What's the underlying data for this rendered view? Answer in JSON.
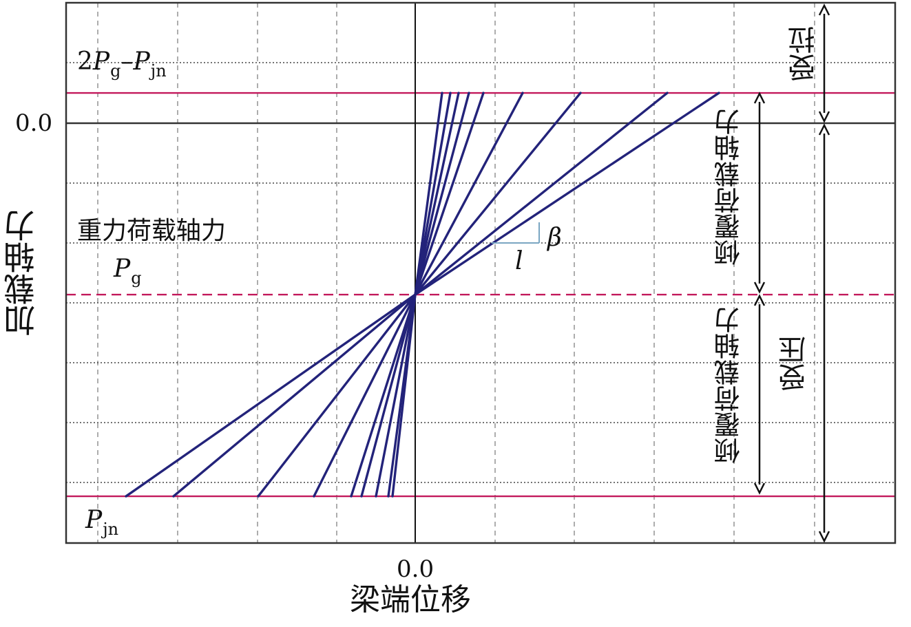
{
  "chart_data": {
    "type": "line",
    "title": "",
    "xlabel": "梁端位移",
    "ylabel": "加载轴力",
    "x_tick_labels": [
      "0.0"
    ],
    "y_tick_labels": [
      "0.0"
    ],
    "grid": true,
    "reference_lines": [
      {
        "label_prefix": "2",
        "label_p1": "P",
        "label_s1": "g",
        "label_dash": "–",
        "label_p2": "P",
        "label_s2": "jn",
        "value": 0.15,
        "color": "#c2185b",
        "style": "solid"
      },
      {
        "label_symbol": "P",
        "label_sub": "g",
        "value": -0.85,
        "color": "#c2185b",
        "style": "dashed"
      },
      {
        "label_symbol": "P",
        "label_sub": "jn",
        "value": -1.85,
        "color": "#c2185b",
        "style": "solid"
      }
    ],
    "gravity_load_label": "重力荷载轴力",
    "line_color": "#23237a",
    "upper_lines_x_at_top": [
      0.13,
      0.17,
      0.21,
      0.26,
      0.33,
      0.52,
      0.8,
      1.22,
      1.47
    ],
    "lower_lines_x_at_bottom": [
      -1.4,
      -1.17,
      -0.76,
      -0.49,
      -0.31,
      -0.26,
      -0.19,
      -0.13,
      -0.11
    ],
    "slope_annotation": {
      "run_label": "l",
      "rise_label": "β",
      "color": "#7aa6c2"
    },
    "right_annotations": [
      {
        "label": "受拉",
        "span": "top-to-zero"
      },
      {
        "label": "受压",
        "span": "zero-to-bottom"
      },
      {
        "label": "倾覆荷载轴力",
        "span": "Pg-to-upper-line"
      },
      {
        "label": "倾覆荷载轴力",
        "span": "Pg-to-Pjn"
      }
    ]
  }
}
